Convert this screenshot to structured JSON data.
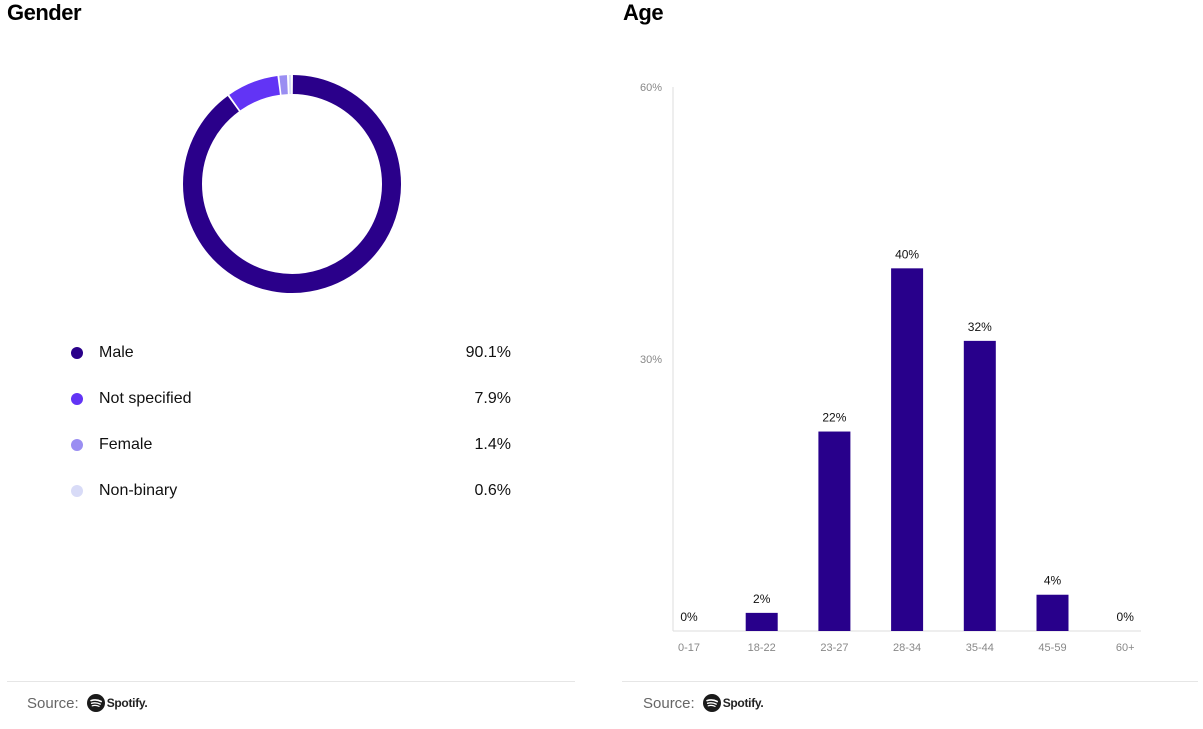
{
  "gender_panel": {
    "title": "Gender",
    "source_label": "Source:",
    "source_brand": "Spotify",
    "source_brand_suffix": "."
  },
  "age_panel": {
    "title": "Age",
    "source_label": "Source:",
    "source_brand": "Spotify",
    "source_brand_suffix": "."
  },
  "colors": {
    "male": "#2a008a",
    "not_specified": "#6234f5",
    "female": "#9a8ef2",
    "non_binary": "#d8dbf7",
    "bar": "#28008b",
    "axis": "#dddddd"
  },
  "legend": [
    {
      "label": "Male",
      "value": "90.1%",
      "color": "#2a008a"
    },
    {
      "label": "Not specified",
      "value": "7.9%",
      "color": "#6234f5"
    },
    {
      "label": "Female",
      "value": "1.4%",
      "color": "#9a8ef2"
    },
    {
      "label": "Non-binary",
      "value": "0.6%",
      "color": "#d8dbf7"
    }
  ],
  "chart_data": [
    {
      "type": "pie",
      "title": "Gender",
      "categories": [
        "Male",
        "Not specified",
        "Female",
        "Non-binary"
      ],
      "values": [
        90.1,
        7.9,
        1.4,
        0.6
      ],
      "colors": [
        "#2a008a",
        "#6234f5",
        "#9a8ef2",
        "#d8dbf7"
      ],
      "style": "donut",
      "legend_placement": "bottom"
    },
    {
      "type": "bar",
      "title": "Age",
      "categories": [
        "0-17",
        "18-22",
        "23-27",
        "28-34",
        "35-44",
        "45-59",
        "60+"
      ],
      "values": [
        0,
        2,
        22,
        40,
        32,
        4,
        0
      ],
      "data_labels": [
        "0%",
        "2%",
        "22%",
        "40%",
        "32%",
        "4%",
        "0%"
      ],
      "ylim": [
        0,
        60
      ],
      "yticks": [
        "60%",
        "30%"
      ],
      "ytick_values": [
        60,
        30
      ],
      "grid": false,
      "xlabel": "",
      "ylabel": ""
    }
  ]
}
